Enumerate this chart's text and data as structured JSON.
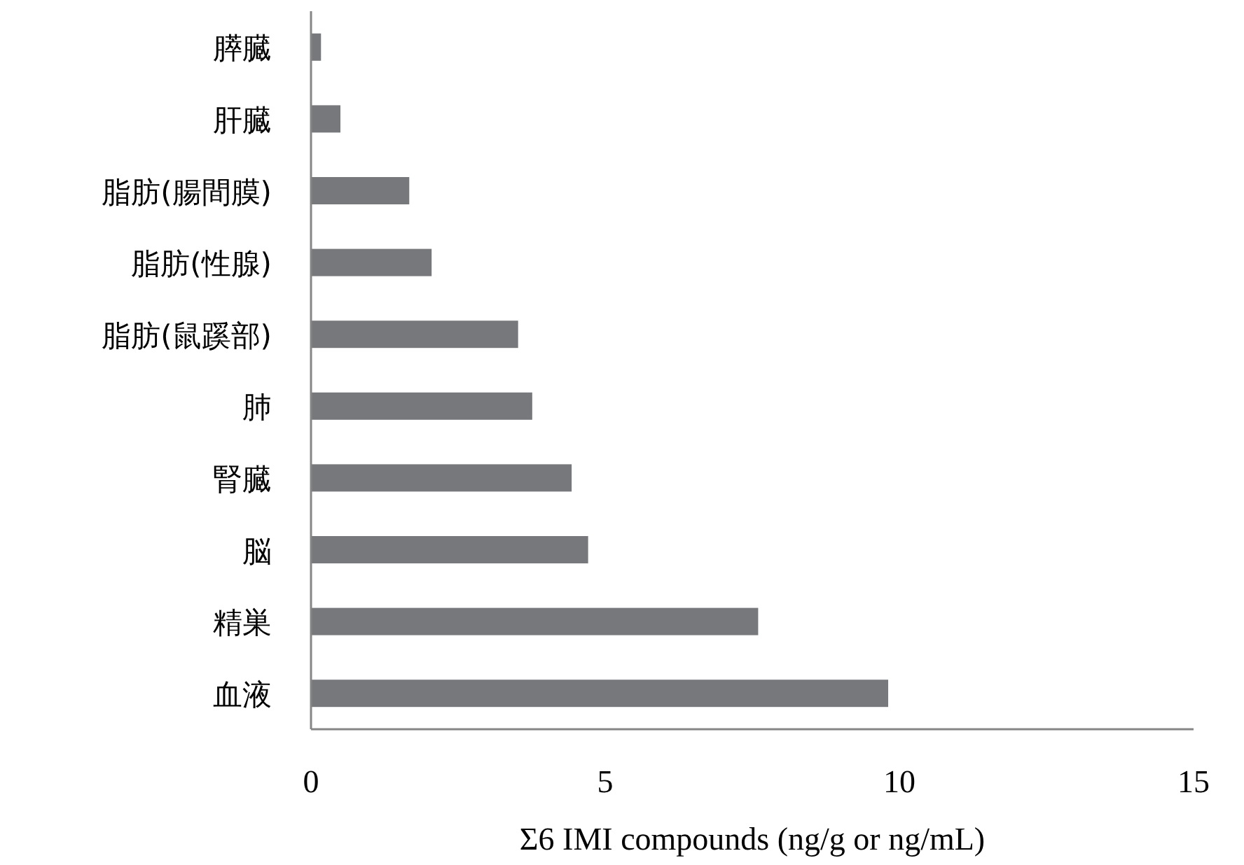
{
  "chart_data": {
    "type": "bar",
    "orientation": "horizontal",
    "categories": [
      "膵臓",
      "肝臓",
      "脂肪(腸間膜)",
      "脂肪(性腺)",
      "脂肪(鼠蹊部)",
      "肺",
      "腎臓",
      "脳",
      "精巣",
      "血液"
    ],
    "values": [
      0.17,
      0.5,
      1.67,
      2.05,
      3.52,
      3.76,
      4.43,
      4.71,
      7.6,
      9.81
    ],
    "color": "#77787b",
    "xlabel": "Σ6 IMI compounds (ng/g or ng/mL)",
    "xlim": [
      0,
      15
    ],
    "xticks": [
      0,
      5,
      10,
      15
    ],
    "grid": false
  }
}
